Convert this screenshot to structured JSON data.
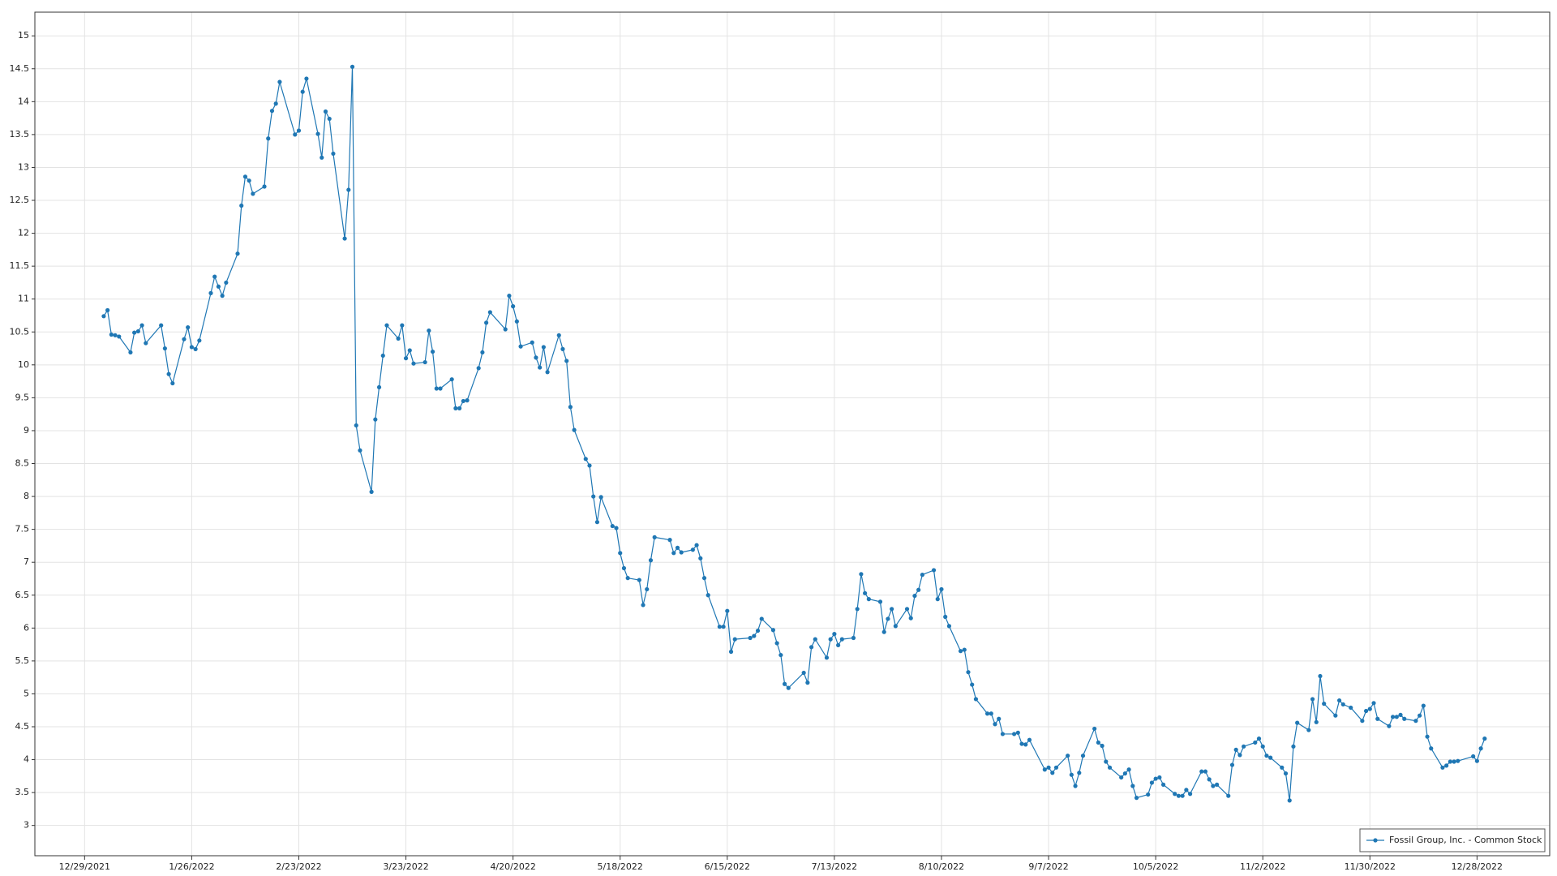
{
  "chart_data": {
    "type": "line",
    "x": [
      "1/3/2022",
      "1/4/2022",
      "1/5/2022",
      "1/6/2022",
      "1/7/2022",
      "1/10/2022",
      "1/11/2022",
      "1/12/2022",
      "1/13/2022",
      "1/14/2022",
      "1/18/2022",
      "1/19/2022",
      "1/20/2022",
      "1/21/2022",
      "1/24/2022",
      "1/25/2022",
      "1/26/2022",
      "1/27/2022",
      "1/28/2022",
      "1/31/2022",
      "2/1/2022",
      "2/2/2022",
      "2/3/2022",
      "2/4/2022",
      "2/7/2022",
      "2/8/2022",
      "2/9/2022",
      "2/10/2022",
      "2/11/2022",
      "2/14/2022",
      "2/15/2022",
      "2/16/2022",
      "2/17/2022",
      "2/18/2022",
      "2/22/2022",
      "2/23/2022",
      "2/24/2022",
      "2/25/2022",
      "2/28/2022",
      "3/1/2022",
      "3/2/2022",
      "3/3/2022",
      "3/4/2022",
      "3/7/2022",
      "3/8/2022",
      "3/9/2022",
      "3/10/2022",
      "3/11/2022",
      "3/14/2022",
      "3/15/2022",
      "3/16/2022",
      "3/17/2022",
      "3/18/2022",
      "3/21/2022",
      "3/22/2022",
      "3/23/2022",
      "3/24/2022",
      "3/25/2022",
      "3/28/2022",
      "3/29/2022",
      "3/30/2022",
      "3/31/2022",
      "4/1/2022",
      "4/4/2022",
      "4/5/2022",
      "4/6/2022",
      "4/7/2022",
      "4/8/2022",
      "4/11/2022",
      "4/12/2022",
      "4/13/2022",
      "4/14/2022",
      "4/18/2022",
      "4/19/2022",
      "4/20/2022",
      "4/21/2022",
      "4/22/2022",
      "4/25/2022",
      "4/26/2022",
      "4/27/2022",
      "4/28/2022",
      "4/29/2022",
      "5/2/2022",
      "5/3/2022",
      "5/4/2022",
      "5/5/2022",
      "5/6/2022",
      "5/9/2022",
      "5/10/2022",
      "5/11/2022",
      "5/12/2022",
      "5/13/2022",
      "5/16/2022",
      "5/17/2022",
      "5/18/2022",
      "5/19/2022",
      "5/20/2022",
      "5/23/2022",
      "5/24/2022",
      "5/25/2022",
      "5/26/2022",
      "5/27/2022",
      "5/31/2022",
      "6/1/2022",
      "6/2/2022",
      "6/3/2022",
      "6/6/2022",
      "6/7/2022",
      "6/8/2022",
      "6/9/2022",
      "6/10/2022",
      "6/13/2022",
      "6/14/2022",
      "6/15/2022",
      "6/16/2022",
      "6/17/2022",
      "6/21/2022",
      "6/22/2022",
      "6/23/2022",
      "6/24/2022",
      "6/27/2022",
      "6/28/2022",
      "6/29/2022",
      "6/30/2022",
      "7/1/2022",
      "7/5/2022",
      "7/6/2022",
      "7/7/2022",
      "7/8/2022",
      "7/11/2022",
      "7/12/2022",
      "7/13/2022",
      "7/14/2022",
      "7/15/2022",
      "7/18/2022",
      "7/19/2022",
      "7/20/2022",
      "7/21/2022",
      "7/22/2022",
      "7/25/2022",
      "7/26/2022",
      "7/27/2022",
      "7/28/2022",
      "7/29/2022",
      "8/1/2022",
      "8/2/2022",
      "8/3/2022",
      "8/4/2022",
      "8/5/2022",
      "8/8/2022",
      "8/9/2022",
      "8/10/2022",
      "8/11/2022",
      "8/12/2022",
      "8/15/2022",
      "8/16/2022",
      "8/17/2022",
      "8/18/2022",
      "8/19/2022",
      "8/22/2022",
      "8/23/2022",
      "8/24/2022",
      "8/25/2022",
      "8/26/2022",
      "8/29/2022",
      "8/30/2022",
      "8/31/2022",
      "9/1/2022",
      "9/2/2022",
      "9/6/2022",
      "9/7/2022",
      "9/8/2022",
      "9/9/2022",
      "9/12/2022",
      "9/13/2022",
      "9/14/2022",
      "9/15/2022",
      "9/16/2022",
      "9/19/2022",
      "9/20/2022",
      "9/21/2022",
      "9/22/2022",
      "9/23/2022",
      "9/26/2022",
      "9/27/2022",
      "9/28/2022",
      "9/29/2022",
      "9/30/2022",
      "10/3/2022",
      "10/4/2022",
      "10/5/2022",
      "10/6/2022",
      "10/7/2022",
      "10/10/2022",
      "10/11/2022",
      "10/12/2022",
      "10/13/2022",
      "10/14/2022",
      "10/17/2022",
      "10/18/2022",
      "10/19/2022",
      "10/20/2022",
      "10/21/2022",
      "10/24/2022",
      "10/25/2022",
      "10/26/2022",
      "10/27/2022",
      "10/28/2022",
      "10/31/2022",
      "11/1/2022",
      "11/2/2022",
      "11/3/2022",
      "11/4/2022",
      "11/7/2022",
      "11/8/2022",
      "11/9/2022",
      "11/10/2022",
      "11/11/2022",
      "11/14/2022",
      "11/15/2022",
      "11/16/2022",
      "11/17/2022",
      "11/18/2022",
      "11/21/2022",
      "11/22/2022",
      "11/23/2022",
      "11/25/2022",
      "11/28/2022",
      "11/29/2022",
      "11/30/2022",
      "12/1/2022",
      "12/2/2022",
      "12/5/2022",
      "12/6/2022",
      "12/7/2022",
      "12/8/2022",
      "12/9/2022",
      "12/12/2022",
      "12/13/2022",
      "12/14/2022",
      "12/15/2022",
      "12/16/2022",
      "12/19/2022",
      "12/20/2022",
      "12/21/2022",
      "12/22/2022",
      "12/23/2022",
      "12/27/2022",
      "12/28/2022",
      "12/29/2022",
      "12/30/2022"
    ],
    "series": [
      {
        "name": "Fossil Group, Inc. - Common Stock",
        "color": "#1f77b4",
        "values": [
          10.74,
          10.83,
          10.46,
          10.45,
          10.43,
          10.19,
          10.49,
          10.51,
          10.6,
          10.33,
          10.6,
          10.25,
          9.86,
          9.72,
          10.39,
          10.57,
          10.27,
          10.24,
          10.37,
          11.09,
          11.34,
          11.19,
          11.05,
          11.25,
          11.69,
          12.42,
          12.86,
          12.8,
          12.6,
          12.71,
          13.44,
          13.86,
          13.97,
          14.3,
          13.5,
          13.56,
          14.15,
          14.35,
          13.51,
          13.15,
          13.85,
          13.74,
          13.21,
          11.92,
          12.66,
          14.53,
          9.08,
          8.7,
          8.07,
          9.17,
          9.66,
          10.14,
          10.6,
          10.4,
          10.6,
          10.1,
          10.22,
          10.02,
          10.04,
          10.52,
          10.2,
          9.64,
          9.64,
          9.78,
          9.34,
          9.34,
          9.45,
          9.46,
          9.95,
          10.19,
          10.64,
          10.8,
          10.54,
          11.05,
          10.89,
          10.66,
          10.28,
          10.34,
          10.11,
          9.96,
          10.27,
          9.89,
          10.45,
          10.24,
          10.06,
          9.36,
          9.01,
          8.57,
          8.47,
          8.0,
          7.61,
          7.99,
          7.55,
          7.52,
          7.14,
          6.91,
          6.76,
          6.73,
          6.35,
          6.59,
          7.03,
          7.38,
          7.34,
          7.14,
          7.22,
          7.15,
          7.19,
          7.26,
          7.06,
          6.76,
          6.5,
          6.02,
          6.02,
          6.26,
          5.64,
          5.83,
          5.85,
          5.88,
          5.96,
          6.14,
          5.97,
          5.77,
          5.59,
          5.15,
          5.09,
          5.32,
          5.17,
          5.71,
          5.83,
          5.55,
          5.83,
          5.91,
          5.74,
          5.83,
          5.85,
          6.29,
          6.82,
          6.53,
          6.44,
          6.4,
          5.94,
          6.14,
          6.29,
          6.03,
          6.29,
          6.15,
          6.49,
          6.58,
          6.81,
          6.88,
          6.44,
          6.59,
          6.17,
          6.03,
          5.65,
          5.67,
          5.33,
          5.14,
          4.92,
          4.7,
          4.7,
          4.54,
          4.62,
          4.39,
          4.39,
          4.41,
          4.24,
          4.23,
          4.3,
          3.85,
          3.88,
          3.8,
          3.88,
          4.06,
          3.77,
          3.6,
          3.8,
          4.06,
          4.47,
          4.26,
          4.21,
          3.97,
          3.88,
          3.73,
          3.79,
          3.85,
          3.6,
          3.42,
          3.47,
          3.65,
          3.71,
          3.73,
          3.62,
          3.48,
          3.45,
          3.45,
          3.54,
          3.48,
          3.82,
          3.82,
          3.7,
          3.6,
          3.62,
          3.45,
          3.92,
          4.15,
          4.07,
          4.2,
          4.26,
          4.32,
          4.2,
          4.06,
          4.03,
          3.88,
          3.79,
          3.38,
          4.2,
          4.56,
          4.45,
          4.92,
          4.57,
          5.27,
          4.85,
          4.67,
          4.9,
          4.84,
          4.79,
          4.59,
          4.74,
          4.77,
          4.86,
          4.62,
          4.51,
          4.65,
          4.65,
          4.68,
          4.62,
          4.59,
          4.67,
          4.82,
          4.35,
          4.17,
          3.88,
          3.91,
          3.97,
          3.97,
          3.98,
          4.05,
          3.98,
          4.17,
          4.32
        ]
      }
    ],
    "xlim": [
      "12/16/2021",
      "1/16/2023"
    ],
    "xticks": [
      "12/29/2021",
      "1/26/2022",
      "2/23/2022",
      "3/23/2022",
      "4/20/2022",
      "5/18/2022",
      "6/15/2022",
      "7/13/2022",
      "8/10/2022",
      "9/7/2022",
      "10/5/2022",
      "11/2/2022",
      "11/30/2022",
      "12/28/2022"
    ],
    "ylim": [
      2.54,
      15.36
    ],
    "yticks": [
      3,
      3.5,
      4,
      4.5,
      5,
      5.5,
      6,
      6.5,
      7,
      7.5,
      8,
      8.5,
      9,
      9.5,
      10,
      10.5,
      11,
      11.5,
      12,
      12.5,
      13,
      13.5,
      14,
      14.5,
      15
    ],
    "grid": true,
    "legend": "bottom-right"
  }
}
